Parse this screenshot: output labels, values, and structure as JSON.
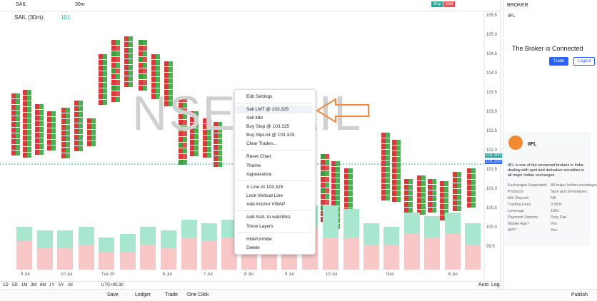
{
  "toolbar": {
    "symbol": "SAIL",
    "interval": "30m",
    "buy": "Buy",
    "sell": "Sell"
  },
  "chart": {
    "legend_symbol": "SAIL (30m):",
    "legend_price": "101",
    "watermark": "NSE:SAIL",
    "price_axis": [
      "105.5",
      "105.0",
      "104.5",
      "104.0",
      "103.5",
      "103.0",
      "102.5",
      "102.0",
      "101.5",
      "101.0",
      "100.5",
      "100.0",
      "99.5"
    ],
    "price_tags": [
      "101.300",
      "101.250"
    ],
    "time_axis": [
      "9 Jul",
      "10 Jul",
      "Tue 20",
      "6 Jul",
      "7 Jul",
      "8 Jul",
      "9 Jul",
      "10 Jul",
      "Dec",
      "6 Jul"
    ]
  },
  "context_menu": {
    "items": [
      "Edit Settings",
      "Sell LMT @ 103.325",
      "Sell Mkt",
      "Buy Stop @ 103.325",
      "Buy StpLmt @ 103.325",
      "Clear Trades...",
      "Reset Chart",
      "Theme",
      "Appearance",
      "X Line At 103.325",
      "Lock Vertical Line",
      "Add Anchor VWAP",
      "Add SAIL to watchlist",
      "Show Layers",
      "Hide/Unhide",
      "Delete"
    ]
  },
  "timeframes": [
    "1D",
    "5D",
    "1M",
    "3M",
    "6M",
    "1Y",
    "5Y",
    "All"
  ],
  "timezone": "UTC+05:30",
  "bottom_bar": {
    "save": "Save",
    "ledger": "Ledger",
    "trade": "Trade",
    "one_click": "One Click",
    "auto": "Auto",
    "log": "Log",
    "publish": "Publish"
  },
  "broker_panel": {
    "header": "BROKER",
    "broker": "IIFL",
    "status": "The Broker is Connected",
    "trade_button": "Trade",
    "logout_button": "Logout",
    "card_title": "IIFL",
    "description": "IIFL is one of the renowned brokers in India dealing with spot and derivative securities in all major Indian exchanges",
    "details": [
      [
        "Exchanges Supported",
        "All major Indian exchanges"
      ],
      [
        "Products",
        "Spot and Derivatives"
      ],
      [
        "Min Deposit",
        "NA"
      ],
      [
        "Trading Fees",
        "0.05%"
      ],
      [
        "Leverage",
        "100x"
      ],
      [
        "Payment Options",
        "Only Fiat"
      ],
      [
        "Mobile App?",
        "Yes"
      ],
      [
        "API?",
        "Yes"
      ]
    ]
  }
}
